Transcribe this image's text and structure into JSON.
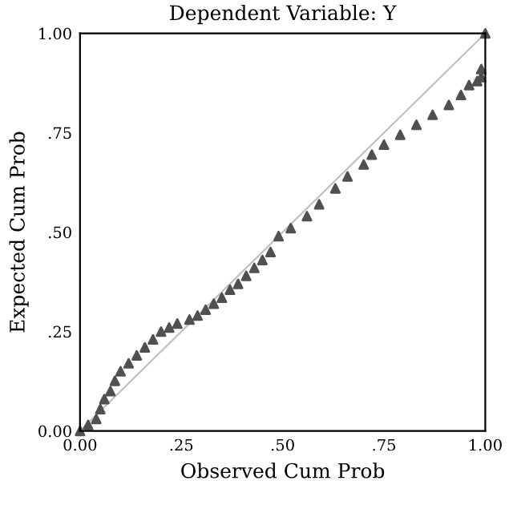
{
  "chart_data": {
    "type": "scatter",
    "title": "Dependent Variable: Y",
    "xlabel": "Observed Cum Prob",
    "ylabel": "Expected Cum Prob",
    "xlim": [
      0,
      1
    ],
    "ylim": [
      0,
      1
    ],
    "xticks": [
      {
        "value": 0,
        "label": "0.00"
      },
      {
        "value": 0.25,
        "label": ".25"
      },
      {
        "value": 0.5,
        "label": ".50"
      },
      {
        "value": 0.75,
        "label": ".75"
      },
      {
        "value": 1,
        "label": "1.00"
      }
    ],
    "yticks": [
      {
        "value": 0,
        "label": "0.00"
      },
      {
        "value": 0.25,
        "label": ".25"
      },
      {
        "value": 0.5,
        "label": ".50"
      },
      {
        "value": 0.75,
        "label": ".75"
      },
      {
        "value": 1,
        "label": "1.00"
      }
    ],
    "grid": false,
    "legend": false,
    "series": [
      {
        "type": "line",
        "marker": "none",
        "color": "#c0c0c0",
        "x": [
          0,
          1
        ],
        "values": [
          0,
          1
        ]
      },
      {
        "marker": "triangle",
        "color": "#505050",
        "x": [
          0,
          0.02,
          0.04,
          0.05,
          0.06,
          0.075,
          0.086,
          0.1,
          0.12,
          0.14,
          0.16,
          0.18,
          0.2,
          0.22,
          0.24,
          0.27,
          0.29,
          0.31,
          0.33,
          0.35,
          0.37,
          0.39,
          0.41,
          0.43,
          0.45,
          0.47,
          0.49,
          0.52,
          0.56,
          0.59,
          0.63,
          0.66,
          0.7,
          0.72,
          0.75,
          0.79,
          0.83,
          0.87,
          0.91,
          0.94,
          0.96,
          0.98,
          0.99,
          0.99,
          1
        ],
        "values": [
          0,
          0.015,
          0.03,
          0.055,
          0.08,
          0.1,
          0.126,
          0.15,
          0.17,
          0.19,
          0.21,
          0.23,
          0.25,
          0.26,
          0.27,
          0.28,
          0.29,
          0.305,
          0.32,
          0.335,
          0.355,
          0.37,
          0.39,
          0.41,
          0.43,
          0.45,
          0.49,
          0.51,
          0.54,
          0.57,
          0.61,
          0.64,
          0.67,
          0.695,
          0.72,
          0.745,
          0.77,
          0.795,
          0.82,
          0.845,
          0.87,
          0.88,
          0.89,
          0.91,
          1
        ]
      }
    ]
  }
}
